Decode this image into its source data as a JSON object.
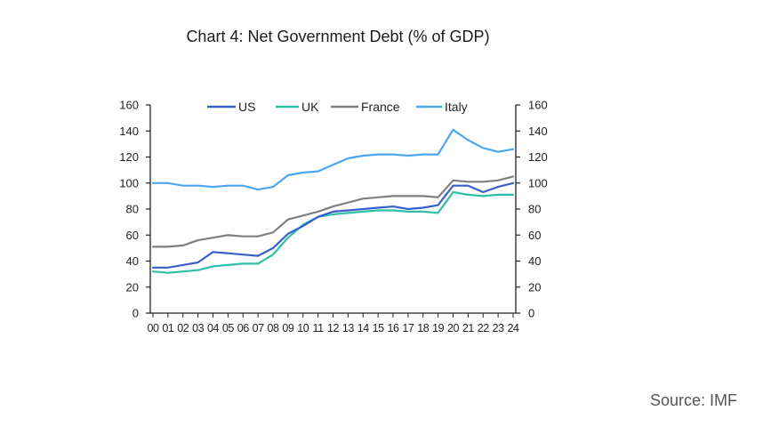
{
  "title": "Chart 4: Net Government Debt (% of GDP)",
  "source": "Source: IMF",
  "chart_data": {
    "type": "line",
    "title": "Chart 4: Net Government Debt (% of GDP)",
    "xlabel": "",
    "ylabel": "",
    "categories": [
      "00",
      "01",
      "02",
      "03",
      "04",
      "05",
      "06",
      "07",
      "08",
      "09",
      "10",
      "11",
      "12",
      "13",
      "14",
      "15",
      "16",
      "17",
      "18",
      "19",
      "20",
      "21",
      "22",
      "23",
      "24"
    ],
    "ylim": [
      0,
      160
    ],
    "yticks": [
      0,
      20,
      40,
      60,
      80,
      100,
      120,
      140,
      160
    ],
    "yticks_labels": [
      "0",
      "20",
      "40",
      "60",
      "80",
      "100",
      "120",
      "140",
      "160"
    ],
    "grid": false,
    "legend_position": "top",
    "dual_axis_mirrored": true,
    "series": [
      {
        "name": "US",
        "color": "#3a5fc8",
        "values": [
          35,
          35,
          37,
          39,
          47,
          46,
          45,
          44,
          50,
          61,
          67,
          74,
          78,
          79,
          80,
          81,
          82,
          80,
          81,
          83,
          98,
          98,
          93,
          97,
          100
        ]
      },
      {
        "name": "UK",
        "color": "#2ebfa5",
        "values": [
          32,
          31,
          32,
          33,
          36,
          37,
          38,
          38,
          45,
          58,
          68,
          74,
          76,
          77,
          78,
          79,
          79,
          78,
          78,
          77,
          93,
          91,
          90,
          91,
          91
        ]
      },
      {
        "name": "France",
        "color": "#7f7f7f",
        "values": [
          51,
          51,
          52,
          56,
          58,
          60,
          59,
          59,
          62,
          72,
          75,
          78,
          82,
          85,
          88,
          89,
          90,
          90,
          90,
          89,
          102,
          101,
          101,
          102,
          105
        ]
      },
      {
        "name": "Italy",
        "color": "#4da6f0",
        "values": [
          100,
          100,
          98,
          98,
          97,
          98,
          98,
          95,
          97,
          106,
          108,
          109,
          114,
          119,
          121,
          122,
          122,
          121,
          122,
          122,
          141,
          133,
          127,
          124,
          126
        ]
      }
    ]
  }
}
